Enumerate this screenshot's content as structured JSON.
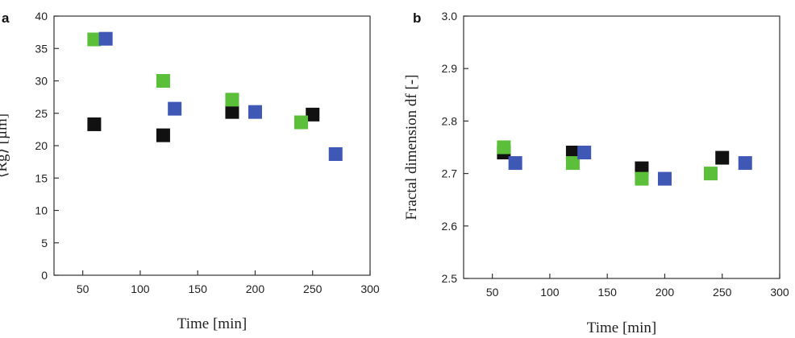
{
  "chart_data": [
    {
      "type": "scatter",
      "panel": "a",
      "xlabel": "Time [min]",
      "ylabel": "⟨Rg⟩ [µm]",
      "xlim": [
        25,
        300
      ],
      "ylim": [
        0,
        40
      ],
      "xticks": [
        50,
        100,
        150,
        200,
        250,
        300
      ],
      "yticks": [
        0,
        5,
        10,
        15,
        20,
        25,
        30,
        35,
        40
      ],
      "grid": false,
      "series": [
        {
          "color": "#111111",
          "points": [
            [
              60,
              23.3
            ],
            [
              120,
              21.6
            ],
            [
              180,
              25.2
            ],
            [
              250,
              24.8
            ]
          ]
        },
        {
          "color": "#5bbf3a",
          "points": [
            [
              60,
              36.4
            ],
            [
              120,
              30.0
            ],
            [
              180,
              27.1
            ],
            [
              240,
              23.6
            ]
          ]
        },
        {
          "color": "#3f57b5",
          "points": [
            [
              70,
              36.5
            ],
            [
              130,
              25.7
            ],
            [
              200,
              25.2
            ],
            [
              270,
              18.7
            ]
          ]
        }
      ]
    },
    {
      "type": "scatter",
      "panel": "b",
      "xlabel": "Time [min]",
      "ylabel": "Fractal dimension df [-]",
      "xlim": [
        25,
        300
      ],
      "ylim": [
        2.5,
        3.0
      ],
      "xticks": [
        50,
        100,
        150,
        200,
        250,
        300
      ],
      "yticks": [
        2.5,
        2.6,
        2.7,
        2.8,
        2.9,
        3.0
      ],
      "grid": false,
      "series": [
        {
          "color": "#111111",
          "points": [
            [
              60,
              2.74
            ],
            [
              120,
              2.74
            ],
            [
              180,
              2.71
            ],
            [
              250,
              2.73
            ]
          ]
        },
        {
          "color": "#5bbf3a",
          "points": [
            [
              60,
              2.75
            ],
            [
              120,
              2.72
            ],
            [
              180,
              2.69
            ],
            [
              240,
              2.7
            ]
          ]
        },
        {
          "color": "#3f57b5",
          "points": [
            [
              70,
              2.72
            ],
            [
              130,
              2.74
            ],
            [
              200,
              2.69
            ],
            [
              270,
              2.72
            ]
          ]
        }
      ]
    }
  ]
}
